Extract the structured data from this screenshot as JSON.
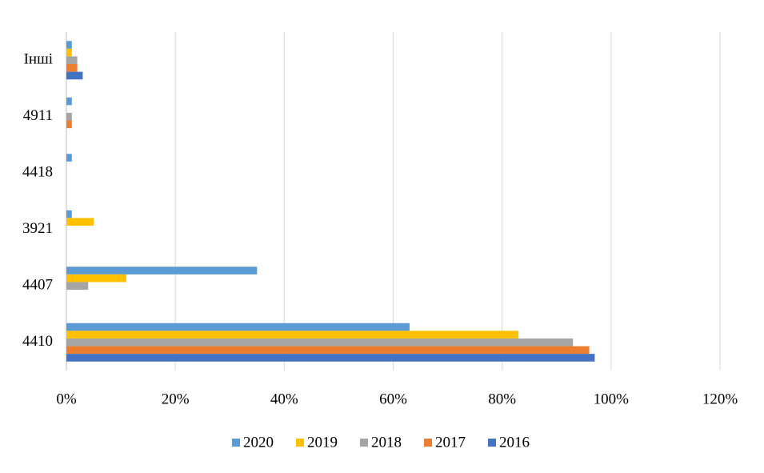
{
  "chart_data": {
    "type": "hbar",
    "categories": [
      "Інші",
      "4911",
      "4418",
      "3921",
      "4407",
      "4410"
    ],
    "series": [
      {
        "name": "2020",
        "color": "#5b9bd5",
        "values": [
          1,
          1,
          1,
          1,
          35,
          63
        ]
      },
      {
        "name": "2019",
        "color": "#ffc000",
        "values": [
          1,
          0,
          0,
          5,
          11,
          83
        ]
      },
      {
        "name": "2018",
        "color": "#a5a5a5",
        "values": [
          2,
          1,
          0,
          0,
          4,
          93
        ]
      },
      {
        "name": "2017",
        "color": "#ed7d31",
        "values": [
          2,
          1,
          0,
          0,
          0,
          96
        ]
      },
      {
        "name": "2016",
        "color": "#4472c4",
        "values": [
          3,
          0,
          0,
          0,
          0,
          97
        ]
      }
    ],
    "xlim": [
      0,
      120
    ],
    "xticks": [
      {
        "value": 0,
        "label": "0%"
      },
      {
        "value": 20,
        "label": "20%"
      },
      {
        "value": 40,
        "label": "40%"
      },
      {
        "value": 60,
        "label": "60%"
      },
      {
        "value": 80,
        "label": "80%"
      },
      {
        "value": 100,
        "label": "100%"
      },
      {
        "value": 120,
        "label": "120%"
      }
    ],
    "grid": true,
    "legend": "bottom"
  }
}
